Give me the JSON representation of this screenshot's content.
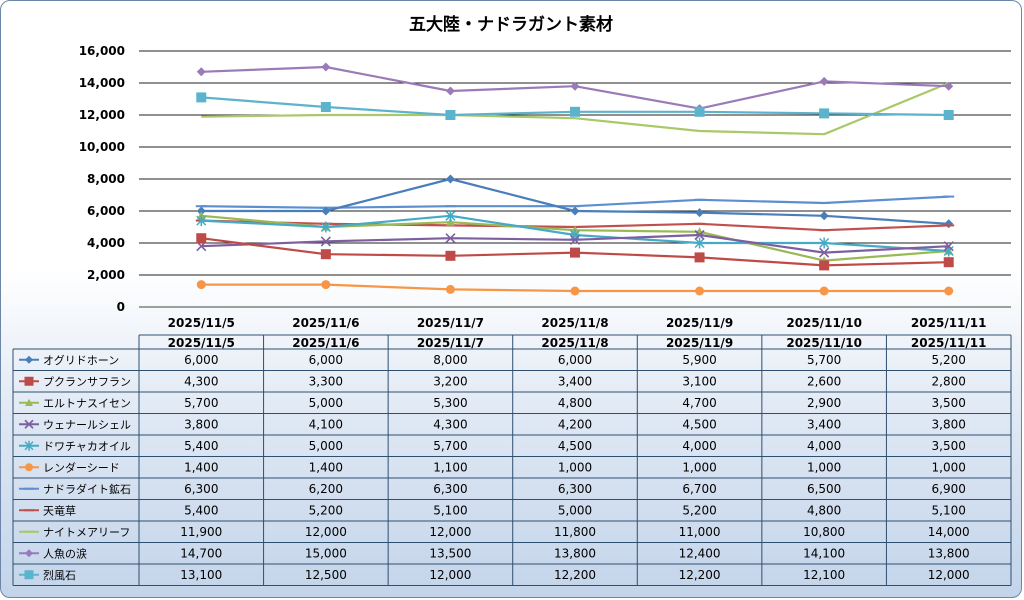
{
  "chart_data": {
    "type": "line",
    "title": "五大陸・ナドラガント素材",
    "categories": [
      "2025/11/5",
      "2025/11/6",
      "2025/11/7",
      "2025/11/8",
      "2025/11/9",
      "2025/11/10",
      "2025/11/11"
    ],
    "ylim": [
      0,
      16000
    ],
    "yticks": [
      "0",
      "2,000",
      "4,000",
      "6,000",
      "8,000",
      "10,000",
      "12,000",
      "14,000",
      "16,000"
    ],
    "grid": true,
    "legend_placement": "data-table",
    "series": [
      {
        "name": "オグリドホーン",
        "color": "#4a7ebb",
        "marker": "diamond",
        "values": [
          6000,
          6000,
          8000,
          6000,
          5900,
          5700,
          5200
        ],
        "labels": [
          "6,000",
          "6,000",
          "8,000",
          "6,000",
          "5,900",
          "5,700",
          "5,200"
        ]
      },
      {
        "name": "プクランサフラン",
        "color": "#be4b48",
        "marker": "square",
        "values": [
          4300,
          3300,
          3200,
          3400,
          3100,
          2600,
          2800
        ],
        "labels": [
          "4,300",
          "3,300",
          "3,200",
          "3,400",
          "3,100",
          "2,600",
          "2,800"
        ]
      },
      {
        "name": "エルトナスイセン",
        "color": "#98b954",
        "marker": "triangle",
        "values": [
          5700,
          5000,
          5300,
          4800,
          4700,
          2900,
          3500
        ],
        "labels": [
          "5,700",
          "5,000",
          "5,300",
          "4,800",
          "4,700",
          "2,900",
          "3,500"
        ]
      },
      {
        "name": "ウェナールシェル",
        "color": "#7d5fa0",
        "marker": "x",
        "values": [
          3800,
          4100,
          4300,
          4200,
          4500,
          3400,
          3800
        ],
        "labels": [
          "3,800",
          "4,100",
          "4,300",
          "4,200",
          "4,500",
          "3,400",
          "3,800"
        ]
      },
      {
        "name": "ドワチャカオイル",
        "color": "#46aac5",
        "marker": "star",
        "values": [
          5400,
          5000,
          5700,
          4500,
          4000,
          4000,
          3500
        ],
        "labels": [
          "5,400",
          "5,000",
          "5,700",
          "4,500",
          "4,000",
          "4,000",
          "3,500"
        ]
      },
      {
        "name": "レンダーシード",
        "color": "#f79646",
        "marker": "circle",
        "values": [
          1400,
          1400,
          1100,
          1000,
          1000,
          1000,
          1000
        ],
        "labels": [
          "1,400",
          "1,400",
          "1,100",
          "1,000",
          "1,000",
          "1,000",
          "1,000"
        ]
      },
      {
        "name": "ナドラダイト鉱石",
        "color": "#5b8fd1",
        "marker": "dash",
        "values": [
          6300,
          6200,
          6300,
          6300,
          6700,
          6500,
          6900
        ],
        "labels": [
          "6,300",
          "6,200",
          "6,300",
          "6,300",
          "6,700",
          "6,500",
          "6,900"
        ]
      },
      {
        "name": "天竜草",
        "color": "#c0504d",
        "marker": "dash",
        "values": [
          5400,
          5200,
          5100,
          5000,
          5200,
          4800,
          5100
        ],
        "labels": [
          "5,400",
          "5,200",
          "5,100",
          "5,000",
          "5,200",
          "4,800",
          "5,100"
        ]
      },
      {
        "name": "ナイトメアリーフ",
        "color": "#a9c868",
        "marker": "none",
        "values": [
          11900,
          12000,
          12000,
          11800,
          11000,
          10800,
          14000
        ],
        "labels": [
          "11,900",
          "12,000",
          "12,000",
          "11,800",
          "11,000",
          "10,800",
          "14,000"
        ]
      },
      {
        "name": "人魚の涙",
        "color": "#9a7bb8",
        "marker": "diamond",
        "values": [
          14700,
          15000,
          13500,
          13800,
          12400,
          14100,
          13800
        ],
        "labels": [
          "14,700",
          "15,000",
          "13,500",
          "13,800",
          "12,400",
          "14,100",
          "13,800"
        ]
      },
      {
        "name": "烈風石",
        "color": "#5cb3cc",
        "marker": "square",
        "values": [
          13100,
          12500,
          12000,
          12200,
          12200,
          12100,
          12000
        ],
        "labels": [
          "13,100",
          "12,500",
          "12,000",
          "12,200",
          "12,200",
          "12,100",
          "12,000"
        ]
      }
    ]
  }
}
